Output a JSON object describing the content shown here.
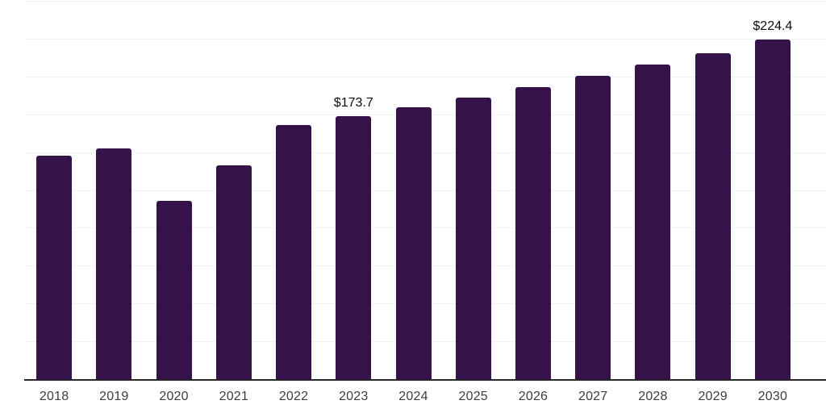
{
  "chart_data": {
    "type": "bar",
    "title": "",
    "xlabel": "",
    "ylabel": "",
    "categories": [
      "2018",
      "2019",
      "2020",
      "2021",
      "2022",
      "2023",
      "2024",
      "2025",
      "2026",
      "2027",
      "2028",
      "2029",
      "2030"
    ],
    "values": [
      147.6,
      152.4,
      117.8,
      141.3,
      167.9,
      173.7,
      179.4,
      186.1,
      193.2,
      200.2,
      207.7,
      215.5,
      224.4
    ],
    "labeled_points": [
      {
        "category": "2023",
        "label": "$173.7"
      },
      {
        "category": "2030",
        "label": "$224.4"
      }
    ],
    "ylim": [
      0,
      250
    ],
    "gridline_interval": 25,
    "grid": "horizontal",
    "legend_position": "none",
    "bar_color": "#36124b",
    "gridline_color": "#f2f2f2",
    "axis_line_color": "#262626",
    "x_label_color": "#3d3d3d",
    "data_label_color": "#0a0a0a",
    "background_color": "#ffffff"
  }
}
